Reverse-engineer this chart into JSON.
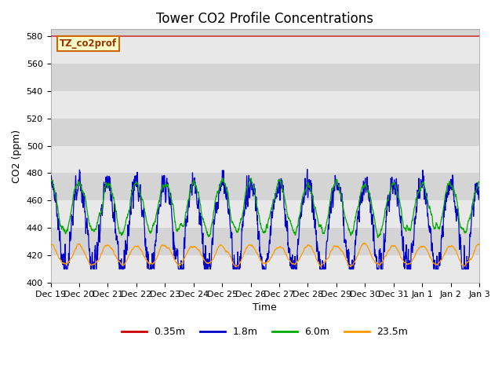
{
  "title": "Tower CO2 Profile Concentrations",
  "xlabel": "Time",
  "ylabel": "CO2 (ppm)",
  "ylim": [
    400,
    585
  ],
  "yticks": [
    400,
    420,
    440,
    460,
    480,
    500,
    520,
    540,
    560,
    580
  ],
  "label_box_text": "TZ_co2prof",
  "legend_labels": [
    "0.35m",
    "1.8m",
    "6.0m",
    "23.5m"
  ],
  "line_colors": [
    "#cc0000",
    "#0000cc",
    "#00aa00",
    "#ff9900"
  ],
  "background_color": "#ffffff",
  "plot_bg_color": "#e0e0e0",
  "stripe_light": "#e8e8e8",
  "stripe_dark": "#d4d4d4",
  "figsize": [
    6.4,
    4.8
  ],
  "dpi": 100,
  "title_fontsize": 12,
  "axis_label_fontsize": 9,
  "tick_fontsize": 8
}
